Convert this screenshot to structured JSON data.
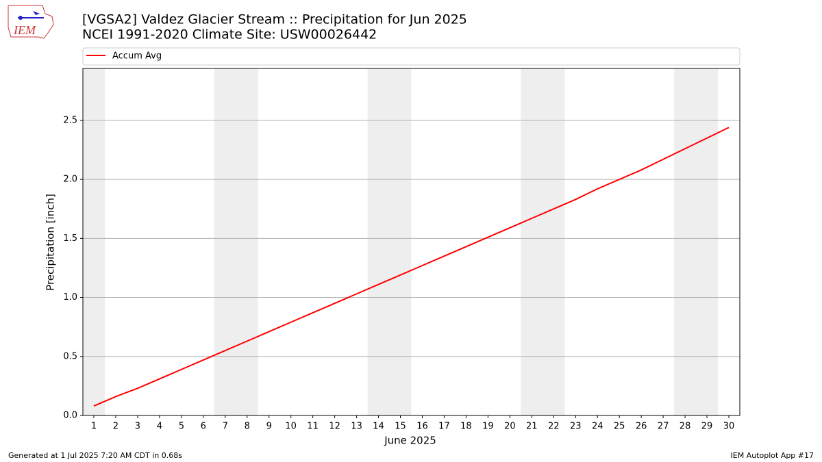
{
  "logo_text": "IEM",
  "footer_left": "Generated at 1 Jul 2025 7:20 AM CDT in 0.68s",
  "footer_right": "IEM Autoplot App #17",
  "chart_data": {
    "type": "line",
    "title": "[VGSA2] Valdez Glacier Stream :: Precipitation for Jun 2025",
    "subtitle": "NCEI 1991-2020 Climate Site: USW00026442",
    "x_label": "June 2025",
    "y_label": "Precipitation [inch]",
    "x": [
      1,
      2,
      3,
      4,
      5,
      6,
      7,
      8,
      9,
      10,
      11,
      12,
      13,
      14,
      15,
      16,
      17,
      18,
      19,
      20,
      21,
      22,
      23,
      24,
      25,
      26,
      27,
      28,
      29,
      30
    ],
    "series": [
      {
        "name": "Accum Avg",
        "color": "#ff0000",
        "values": [
          0.08,
          0.16,
          0.23,
          0.31,
          0.39,
          0.47,
          0.55,
          0.63,
          0.71,
          0.79,
          0.87,
          0.95,
          1.03,
          1.11,
          1.19,
          1.27,
          1.35,
          1.43,
          1.51,
          1.59,
          1.67,
          1.75,
          1.83,
          1.92,
          2.0,
          2.08,
          2.17,
          2.26,
          2.35,
          2.44
        ]
      }
    ],
    "shaded_ranges": [
      [
        0.5,
        1.5
      ],
      [
        6.5,
        8.5
      ],
      [
        13.5,
        15.5
      ],
      [
        20.5,
        22.5
      ],
      [
        27.5,
        29.5
      ]
    ],
    "shade_color": "#eeeeee",
    "xlim": [
      0.5,
      30.5
    ],
    "xticks": [
      1,
      2,
      3,
      4,
      5,
      6,
      7,
      8,
      9,
      10,
      11,
      12,
      13,
      14,
      15,
      16,
      17,
      18,
      19,
      20,
      21,
      22,
      23,
      24,
      25,
      26,
      27,
      28,
      29,
      30
    ],
    "ylim": [
      0,
      2.94
    ],
    "yticks": [
      {
        "value": 0,
        "label": "0.0"
      },
      {
        "value": 0.5,
        "label": "0.5"
      },
      {
        "value": 1,
        "label": "1.0"
      },
      {
        "value": 1.5,
        "label": "1.5"
      },
      {
        "value": 2,
        "label": "2.0"
      },
      {
        "value": 2.5,
        "label": "2.5"
      }
    ],
    "grid": true,
    "legend_position": "top"
  }
}
